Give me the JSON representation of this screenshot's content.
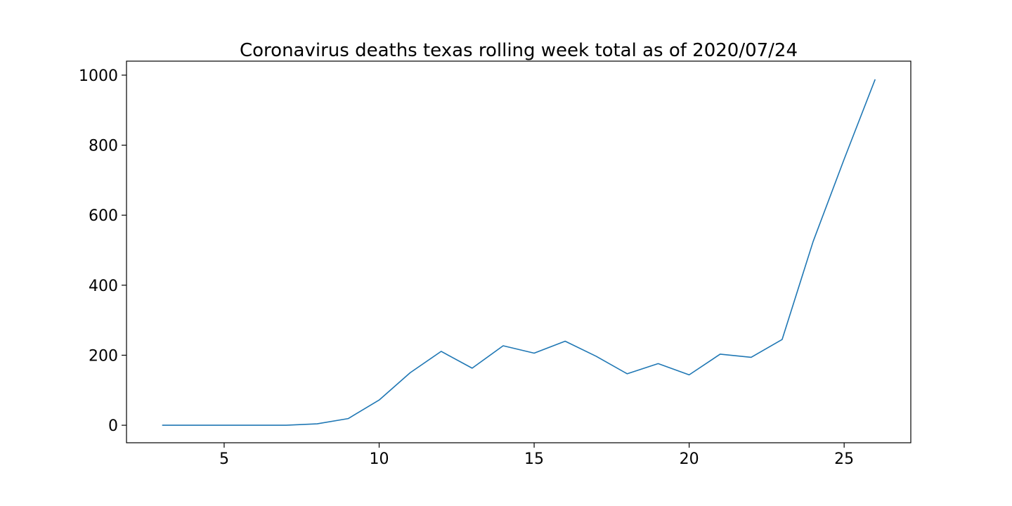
{
  "chart_data": {
    "type": "line",
    "title": "Coronavirus deaths texas rolling week total as of 2020/07/24",
    "xlabel": "",
    "ylabel": "",
    "xlim": [
      1.85,
      27.15
    ],
    "ylim": [
      -50,
      1040
    ],
    "xticks": [
      5,
      10,
      15,
      20,
      25
    ],
    "yticks": [
      0,
      200,
      400,
      600,
      800,
      1000
    ],
    "grid": false,
    "legend": "none",
    "series": [
      {
        "color": "#1f77b4",
        "x": [
          3,
          4,
          5,
          6,
          7,
          8,
          9,
          10,
          11,
          12,
          13,
          14,
          15,
          16,
          17,
          18,
          19,
          20,
          21,
          22,
          23,
          24,
          25,
          26
        ],
        "y": [
          0,
          0,
          0,
          0,
          0,
          4,
          19,
          72,
          150,
          211,
          163,
          227,
          206,
          240,
          197,
          147,
          176,
          144,
          203,
          194,
          245,
          525,
          760,
          988
        ]
      }
    ]
  }
}
